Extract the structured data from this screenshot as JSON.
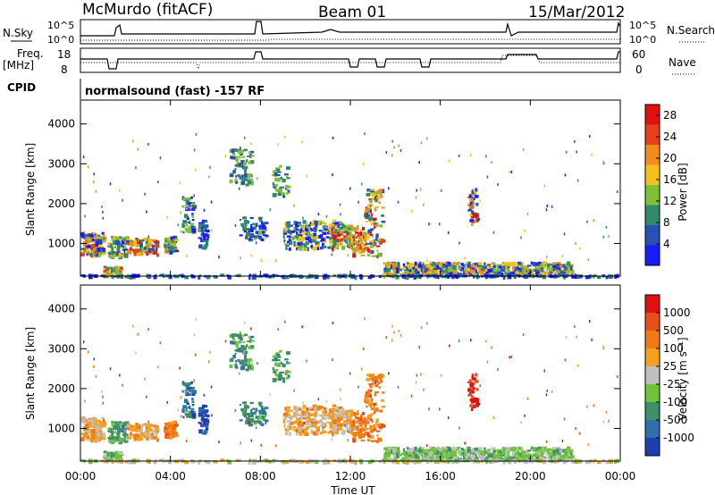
{
  "header": {
    "station": "McMurdo (fitACF)",
    "beam": "Beam 01",
    "date": "15/Mar/2012"
  },
  "summary": {
    "nsky_label": "N.Sky",
    "nsearch_label": "N.Search",
    "noise_ticks": [
      "10^5",
      "10^0"
    ],
    "freq_label_1": "Freq.",
    "freq_label_2": "[MHz]",
    "freq_ticks": [
      "18",
      "8"
    ],
    "nave_label": "Nave",
    "nave_ticks": [
      "60",
      "0"
    ],
    "cpid_label": "CPID",
    "cpid_text": "normalsound (fast) -157 RF"
  },
  "chart_data": [
    {
      "type": "heatmap",
      "ylabel": "Slant Range [km]",
      "xlabel": "Time UT",
      "xticks": [
        "00:00",
        "04:00",
        "08:00",
        "12:00",
        "16:00",
        "20:00",
        "00:00"
      ],
      "yticks": [
        "1000",
        "2000",
        "3000",
        "4000"
      ],
      "xlim_hours": [
        0,
        24
      ],
      "ylim_km": [
        180,
        4600
      ],
      "colorbar": {
        "label": "Power [dB]",
        "ticks": [
          "4",
          "8",
          "12",
          "16",
          "20",
          "24",
          "28"
        ],
        "range": [
          0,
          30
        ],
        "colors": [
          "#1a1aff",
          "#2a4fb5",
          "#2f8a6a",
          "#7fbf3a",
          "#f2c21a",
          "#f28c1e",
          "#e8401c",
          "#e01010"
        ]
      }
    },
    {
      "type": "heatmap",
      "ylabel": "Slant Range [km]",
      "xlabel": "Time UT",
      "xticks": [
        "00:00",
        "04:00",
        "08:00",
        "12:00",
        "16:00",
        "20:00",
        "00:00"
      ],
      "yticks": [
        "1000",
        "2000",
        "3000",
        "4000"
      ],
      "xlim_hours": [
        0,
        24
      ],
      "ylim_km": [
        180,
        4600
      ],
      "colorbar": {
        "label": "Velocity [m s⁻¹]",
        "ticks": [
          "1000",
          "500",
          "100",
          "25",
          "-25",
          "-100",
          "-500",
          "-1000"
        ],
        "colors": [
          "#1f3fb0",
          "#2f6fae",
          "#3f8f6a",
          "#6fc43a",
          "#bfbfbf",
          "#f2a020",
          "#f07a18",
          "#e8501a",
          "#e01010"
        ]
      }
    }
  ]
}
